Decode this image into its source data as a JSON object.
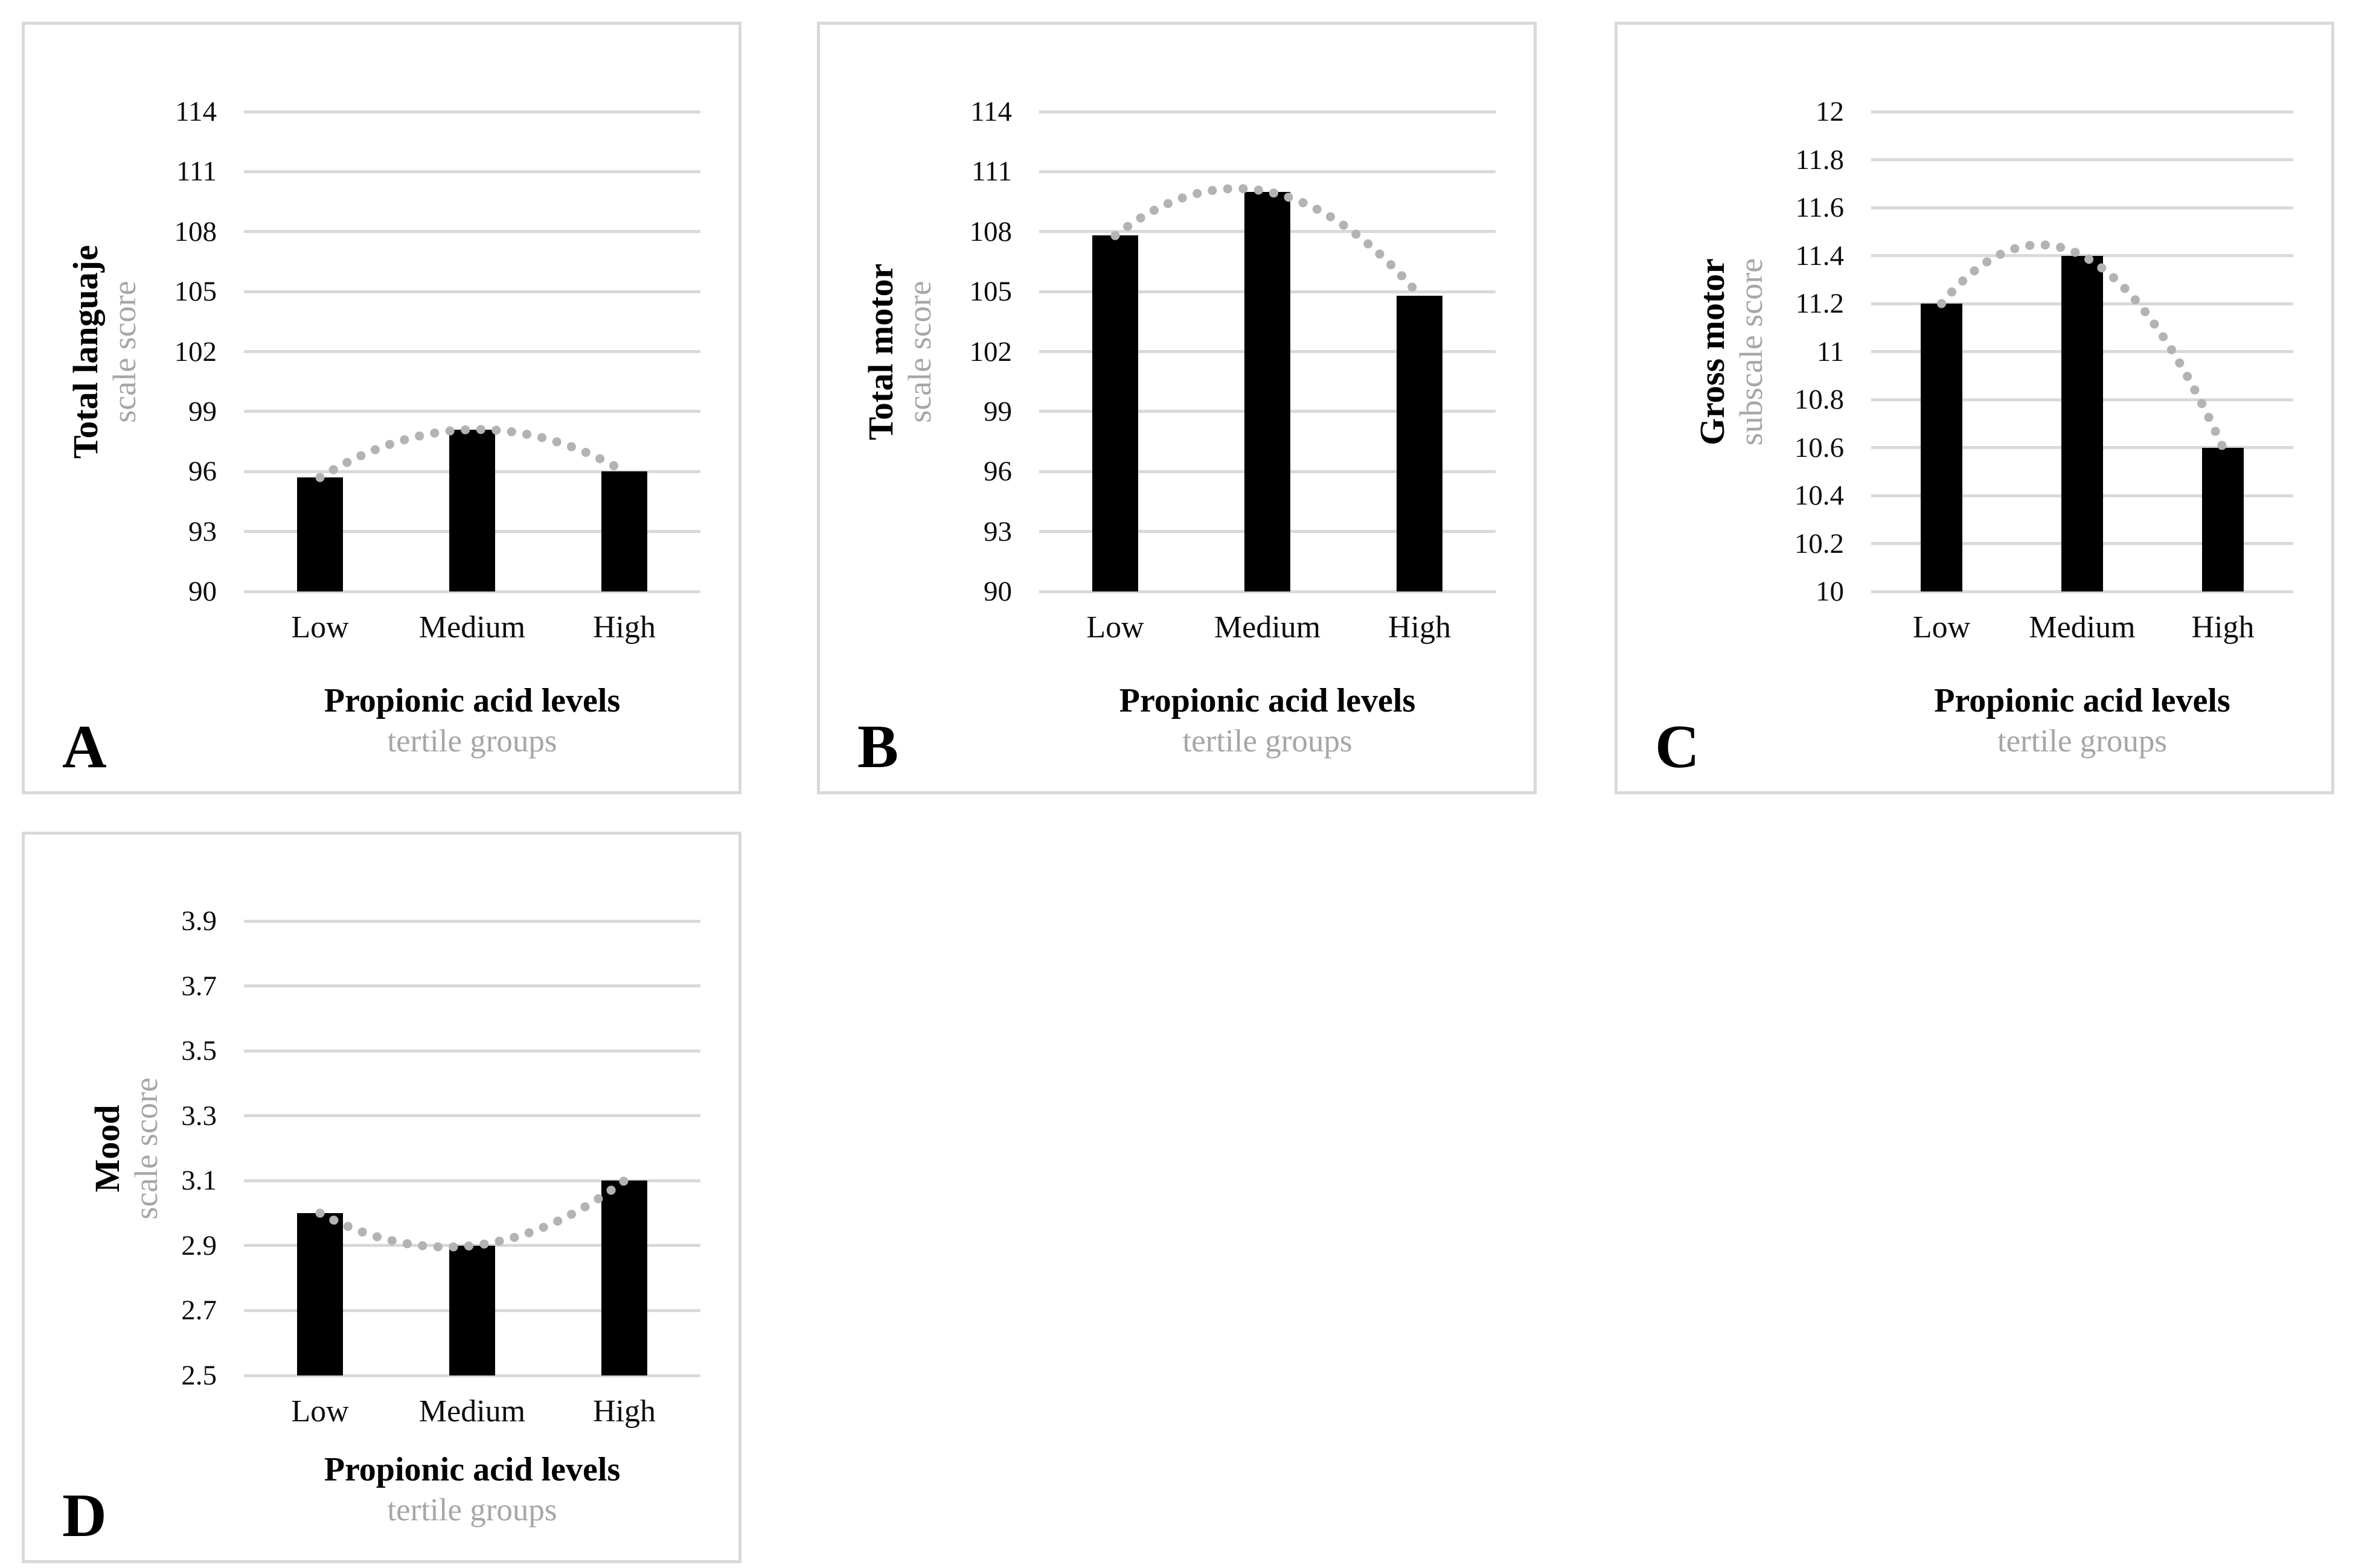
{
  "colors": {
    "bar": "#000000",
    "gridline": "#d9d9d9",
    "panel_border": "#d9d9d9",
    "trendline": "#b3b3b3",
    "subtitle_gray": "#a6a6a6",
    "text": "#000000"
  },
  "chart_data": [
    {
      "type": "bar",
      "panel_label": "A",
      "ylabel": "Total languaje",
      "ylabel_sub": "scale score",
      "xlabel": "Propionic acid levels",
      "xlabel_sub": "tertile groups",
      "categories": [
        "Low",
        "Medium",
        "High"
      ],
      "values": [
        95.7,
        98.1,
        96.0
      ],
      "y_ticks": [
        "114",
        "111",
        "108",
        "105",
        "102",
        "99",
        "96",
        "93",
        "90"
      ],
      "ylim": [
        90,
        114
      ],
      "grid": true,
      "legend": "none",
      "trendline": {
        "type": "polynomial-2",
        "style": "dotted"
      }
    },
    {
      "type": "bar",
      "panel_label": "B",
      "ylabel": "Total motor",
      "ylabel_sub": "scale score",
      "xlabel": "Propionic acid levels",
      "xlabel_sub": "tertile groups",
      "categories": [
        "Low",
        "Medium",
        "High"
      ],
      "values": [
        107.8,
        110.0,
        104.8
      ],
      "y_ticks": [
        "114",
        "111",
        "108",
        "105",
        "102",
        "99",
        "96",
        "93",
        "90"
      ],
      "ylim": [
        90,
        114
      ],
      "grid": true,
      "legend": "none",
      "trendline": {
        "type": "polynomial-2",
        "style": "dotted"
      }
    },
    {
      "type": "bar",
      "panel_label": "C",
      "ylabel": "Gross motor",
      "ylabel_sub": "subscale score",
      "xlabel": "Propionic acid levels",
      "xlabel_sub": "tertile groups",
      "categories": [
        "Low",
        "Medium",
        "High"
      ],
      "values": [
        11.2,
        11.4,
        10.6
      ],
      "y_ticks": [
        "12",
        "11.8",
        "11.6",
        "11.4",
        "11.2",
        "11",
        "10.8",
        "10.6",
        "10.4",
        "10.2",
        "10"
      ],
      "ylim": [
        10,
        12
      ],
      "grid": true,
      "legend": "none",
      "trendline": {
        "type": "polynomial-2",
        "style": "dotted"
      }
    },
    {
      "type": "bar",
      "panel_label": "D",
      "ylabel": "Mood",
      "ylabel_sub": "scale score",
      "xlabel": "Propionic acid levels",
      "xlabel_sub": "tertile groups",
      "categories": [
        "Low",
        "Medium",
        "High"
      ],
      "values": [
        3.0,
        2.9,
        3.1
      ],
      "y_ticks": [
        "3.9",
        "3.7",
        "3.5",
        "3.3",
        "3.1",
        "2.9",
        "2.7",
        "2.5"
      ],
      "ylim": [
        2.5,
        3.9
      ],
      "grid": true,
      "legend": "none",
      "trendline": {
        "type": "polynomial-2",
        "style": "dotted"
      }
    }
  ]
}
